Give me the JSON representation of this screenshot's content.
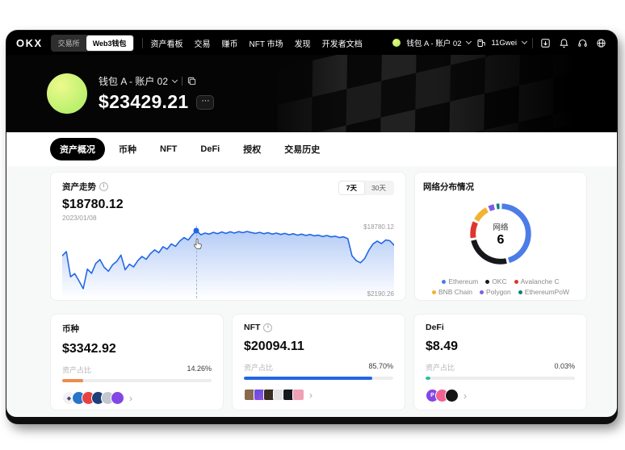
{
  "navbar": {
    "logo": "OKX",
    "toggle": {
      "options": [
        "交易所",
        "Web3钱包"
      ],
      "active_index": 1
    },
    "menu": [
      "资产看板",
      "交易",
      "赚币",
      "NFT 市场",
      "发现",
      "开发者文档"
    ],
    "account_label": "钱包 A - 账户 02",
    "gas_label": "11Gwei",
    "icons": [
      "download-icon",
      "bell-icon",
      "headset-icon",
      "globe-icon"
    ]
  },
  "hero": {
    "wallet_name": "钱包 A - 账户 02",
    "balance": "$23429.21",
    "more_label": "⋯"
  },
  "tabs": {
    "items": [
      "资产概况",
      "币种",
      "NFT",
      "DeFi",
      "授权",
      "交易历史"
    ],
    "active_index": 0
  },
  "trend_card": {
    "title": "资产走势",
    "value": "$18780.12",
    "date": "2023/01/08",
    "ranges": [
      "7天",
      "30天"
    ],
    "active_range_index": 0,
    "max_label": "$18780.12",
    "min_label": "$2190.26",
    "line_color": "#2166e5"
  },
  "network_card": {
    "title": "网络分布情况",
    "center_label": "网络",
    "center_value": "6"
  },
  "chart_data": [
    {
      "type": "area",
      "title": "资产走势",
      "ylabel": "USD",
      "ylim": [
        2190.26,
        18780.12
      ],
      "cursor_index": 32,
      "cursor_value": 18780.12,
      "grid": false,
      "values": [
        11600,
        12800,
        5600,
        6500,
        4400,
        2190,
        7800,
        6600,
        9400,
        10500,
        8300,
        7200,
        9000,
        10000,
        11800,
        7600,
        9200,
        8400,
        10200,
        11400,
        10600,
        12200,
        13300,
        12500,
        14200,
        13500,
        15000,
        14300,
        15800,
        16800,
        16100,
        17600,
        18780,
        17600,
        18100,
        17800,
        18300,
        17900,
        18400,
        18000,
        18450,
        18100,
        18500,
        18200,
        18550,
        18250,
        18000,
        18300,
        17900,
        18200,
        17800,
        18100,
        17700,
        18000,
        17600,
        17900,
        17500,
        17800,
        17400,
        17700,
        17300,
        17500,
        17100,
        17400,
        17000,
        17200,
        16800,
        17000,
        16500,
        11600,
        10200,
        9600,
        10800,
        13200,
        15000,
        15800,
        15100,
        16100,
        15900,
        14600
      ]
    },
    {
      "type": "pie",
      "title": "网络分布情况",
      "center_label": "网络",
      "center_value": 6,
      "legend_position": "bottom",
      "segments": [
        {
          "name": "Ethereum",
          "value": 46,
          "color": "#4c7ce8"
        },
        {
          "name": "OKC",
          "value": 26,
          "color": "#17181c"
        },
        {
          "name": "Avalanche C",
          "value": 10.5,
          "color": "#e0352e"
        },
        {
          "name": "BNB Chain",
          "value": 10,
          "color": "#f2b331"
        },
        {
          "name": "Polygon",
          "value": 4.5,
          "color": "#7e5ce6"
        },
        {
          "name": "EthereumPoW",
          "value": 3,
          "color": "#0e7f7d"
        }
      ]
    }
  ],
  "mini_cards": {
    "coin": {
      "title": "币种",
      "value": "$3342.92",
      "ratio_label": "资产占比",
      "ratio": "14.26%",
      "bar_pct": 14.26,
      "bar_color": "#ef8a4c",
      "tokens": [
        {
          "bg": "#f1f1f3",
          "glyph": "◆",
          "fg": "#454a75"
        },
        {
          "bg": "#2775ca",
          "glyph": ""
        },
        {
          "bg": "#e84142",
          "glyph": ""
        },
        {
          "bg": "#1d3e7a",
          "glyph": ""
        },
        {
          "bg": "#c3c7cf",
          "glyph": ""
        },
        {
          "bg": "#8247e5",
          "glyph": ""
        }
      ]
    },
    "nft": {
      "title": "NFT",
      "value": "$20094.11",
      "ratio_label": "资产占比",
      "ratio": "85.70%",
      "bar_pct": 85.7,
      "bar_color": "#2166e5",
      "thumbs": [
        "#8a6a4e",
        "linear-gradient(135deg,#5a4fe0,#9a4fe0)",
        "#3a2d22",
        "#e3e3e6",
        "#17181c",
        "#f0a0b4"
      ]
    },
    "defi": {
      "title": "DeFi",
      "value": "$8.49",
      "ratio_label": "资产占比",
      "ratio": "0.03%",
      "bar_pct": 0.03,
      "bar_color": "#1fbfa0",
      "protocols": [
        {
          "bg": "#8247e5",
          "glyph": "P"
        },
        {
          "bg": "#f06292",
          "glyph": ""
        },
        {
          "bg": "#141414",
          "glyph": ""
        }
      ]
    }
  }
}
